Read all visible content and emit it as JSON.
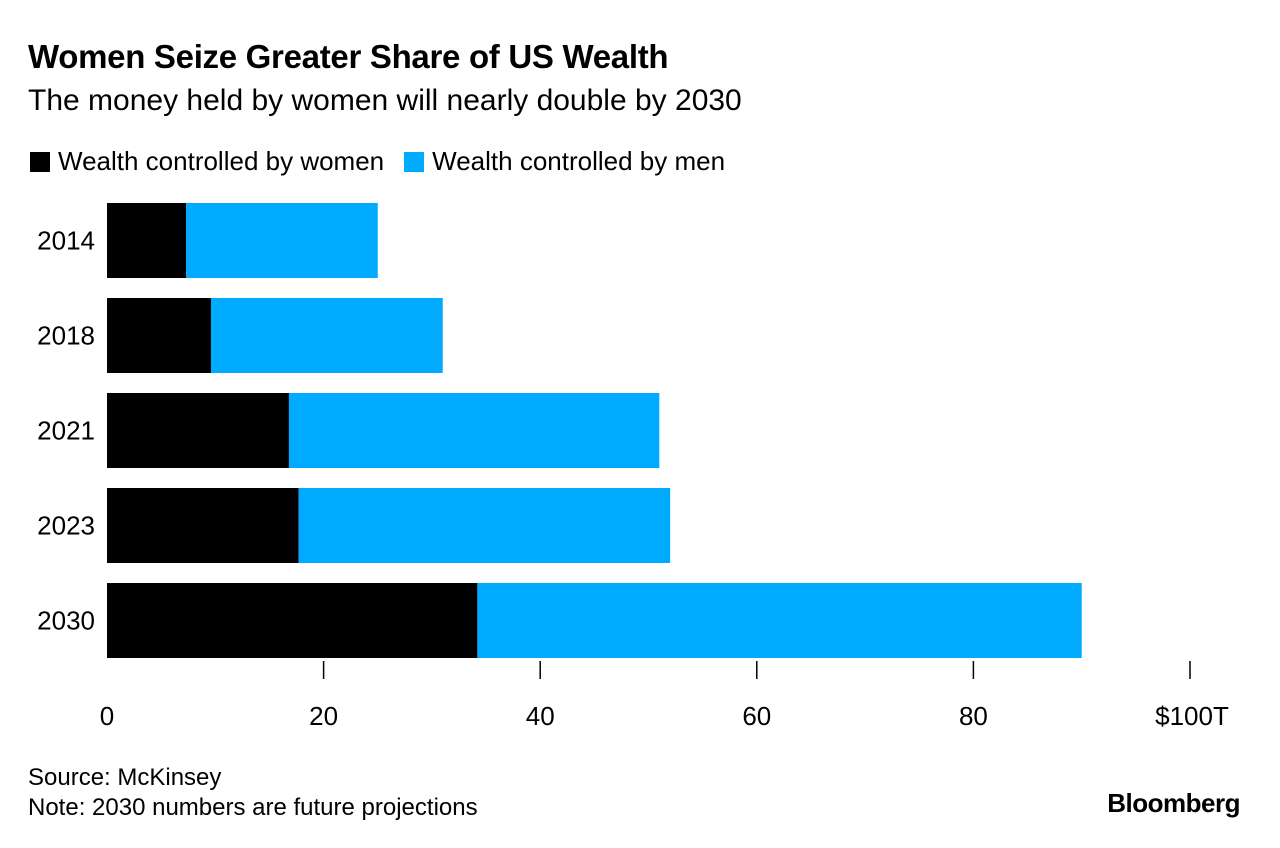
{
  "chart_data": {
    "type": "bar",
    "orientation": "horizontal",
    "stacked": true,
    "title": "Women Seize Greater Share of US Wealth",
    "subtitle": "The money held by women will nearly double by 2030",
    "categories": [
      "2014",
      "2018",
      "2021",
      "2023",
      "2030"
    ],
    "series": [
      {
        "name": "Wealth controlled by women",
        "color": "#000000",
        "values": [
          7.3,
          9.6,
          16.8,
          17.7,
          34.2
        ]
      },
      {
        "name": "Wealth controlled by men",
        "color": "#00aaff",
        "values": [
          17.7,
          21.4,
          34.2,
          34.3,
          55.8
        ]
      }
    ],
    "xlim": [
      0,
      100
    ],
    "xticks": [
      0,
      20,
      40,
      60,
      80,
      100
    ],
    "xtick_labels": [
      "0",
      "20",
      "40",
      "60",
      "80",
      "$100T"
    ],
    "xlabel": "",
    "ylabel": "",
    "legend_position": "top-left",
    "grid": false
  },
  "footer": {
    "source": "Source: McKinsey",
    "note": "Note: 2030 numbers are future projections",
    "brand": "Bloomberg"
  }
}
